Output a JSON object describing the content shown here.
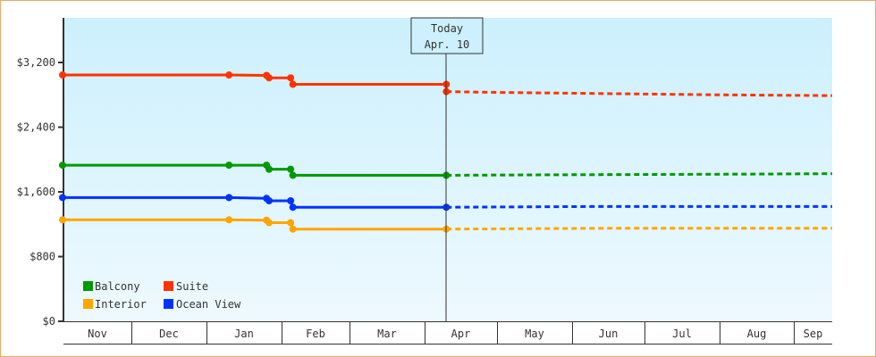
{
  "chart_data": {
    "type": "line",
    "title": "",
    "xlabel": "",
    "ylabel": "",
    "ylim": [
      0,
      3840
    ],
    "y_ticks": [
      {
        "value": 0,
        "label": "$0"
      },
      {
        "value": 800,
        "label": "$800"
      },
      {
        "value": 1600,
        "label": "$1,600"
      },
      {
        "value": 2400,
        "label": "$2,400"
      },
      {
        "value": 3200,
        "label": "$3,200"
      }
    ],
    "x_months": [
      "Nov",
      "Dec",
      "Jan",
      "Feb",
      "Mar",
      "Apr",
      "May",
      "Jun",
      "Jul",
      "Aug",
      "Sep"
    ],
    "today_marker": {
      "line1": "Today",
      "line2": "Apr. 10"
    },
    "grid": false,
    "legend_position": "bottom-left inside plot",
    "legend": [
      {
        "name": "Balcony",
        "color": "#009900"
      },
      {
        "name": "Suite",
        "color": "#ff3300"
      },
      {
        "name": "Interior",
        "color": "#ffa500"
      },
      {
        "name": "Ocean View",
        "color": "#0033ff"
      }
    ],
    "series": [
      {
        "name": "Suite",
        "color": "#ff3300",
        "historical": [
          {
            "date": "Nov 1",
            "value": 3045
          },
          {
            "date": "Jan 10",
            "value": 3045
          },
          {
            "date": "Jan 25",
            "value": 3040
          },
          {
            "date": "Jan 26",
            "value": 3010
          },
          {
            "date": "Feb 5",
            "value": 3010
          },
          {
            "date": "Feb 6",
            "value": 2930
          },
          {
            "date": "Apr 10",
            "value": 2930
          },
          {
            "date": "Apr 10 (today)",
            "value": 2840
          }
        ],
        "forecast": [
          {
            "date": "Apr 10",
            "value": 2840
          },
          {
            "date": "May 1",
            "value": 2830
          },
          {
            "date": "Jun 1",
            "value": 2820
          },
          {
            "date": "Jul 1",
            "value": 2810
          },
          {
            "date": "Aug 1",
            "value": 2800
          },
          {
            "date": "Sep 15",
            "value": 2790
          }
        ]
      },
      {
        "name": "Balcony",
        "color": "#009900",
        "historical": [
          {
            "date": "Nov 1",
            "value": 1930
          },
          {
            "date": "Jan 10",
            "value": 1930
          },
          {
            "date": "Jan 25",
            "value": 1930
          },
          {
            "date": "Jan 26",
            "value": 1880
          },
          {
            "date": "Feb 5",
            "value": 1880
          },
          {
            "date": "Feb 6",
            "value": 1805
          },
          {
            "date": "Apr 10",
            "value": 1805
          }
        ],
        "forecast": [
          {
            "date": "Apr 10",
            "value": 1805
          },
          {
            "date": "May 15",
            "value": 1810
          },
          {
            "date": "Aug 15",
            "value": 1820
          },
          {
            "date": "Sep 15",
            "value": 1825
          }
        ]
      },
      {
        "name": "Ocean View",
        "color": "#0033ff",
        "historical": [
          {
            "date": "Nov 1",
            "value": 1530
          },
          {
            "date": "Jan 10",
            "value": 1530
          },
          {
            "date": "Jan 25",
            "value": 1520
          },
          {
            "date": "Jan 26",
            "value": 1490
          },
          {
            "date": "Feb 5",
            "value": 1490
          },
          {
            "date": "Feb 6",
            "value": 1410
          },
          {
            "date": "Apr 10",
            "value": 1410
          }
        ],
        "forecast": [
          {
            "date": "Apr 10",
            "value": 1410
          },
          {
            "date": "Jun 15",
            "value": 1420
          },
          {
            "date": "Sep 15",
            "value": 1420
          }
        ]
      },
      {
        "name": "Interior",
        "color": "#ffa500",
        "historical": [
          {
            "date": "Nov 1",
            "value": 1255
          },
          {
            "date": "Jan 10",
            "value": 1255
          },
          {
            "date": "Jan 25",
            "value": 1250
          },
          {
            "date": "Jan 26",
            "value": 1220
          },
          {
            "date": "Feb 5",
            "value": 1220
          },
          {
            "date": "Feb 6",
            "value": 1140
          },
          {
            "date": "Apr 10",
            "value": 1140
          }
        ],
        "forecast": [
          {
            "date": "Apr 10",
            "value": 1140
          },
          {
            "date": "Jun 15",
            "value": 1150
          },
          {
            "date": "Sep 15",
            "value": 1150
          }
        ]
      }
    ]
  }
}
